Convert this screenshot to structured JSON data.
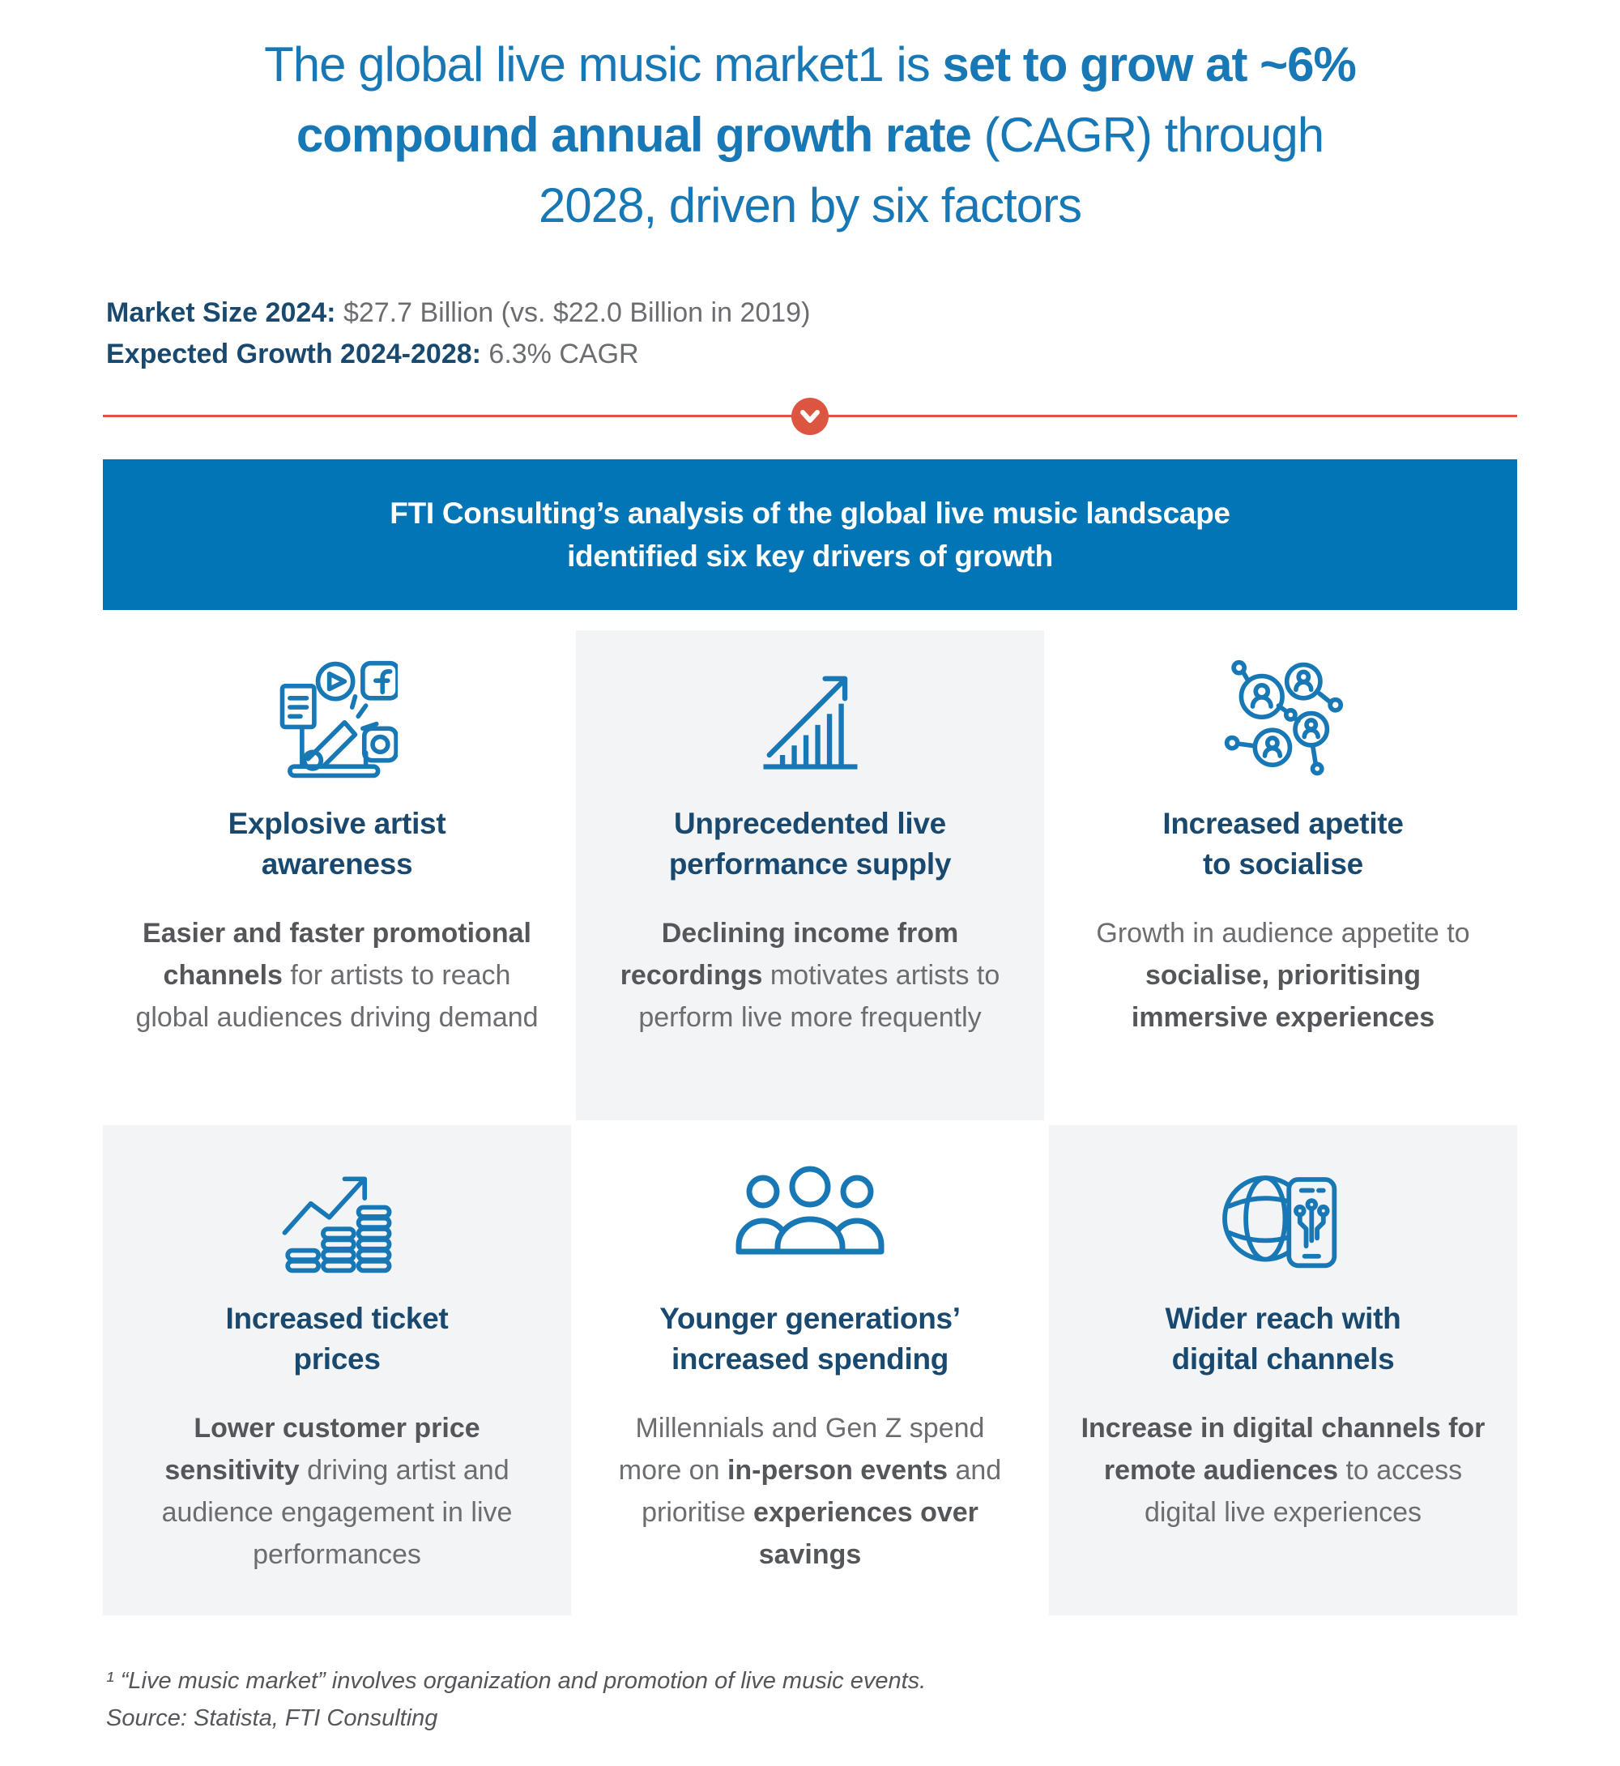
{
  "colors": {
    "accent_blue": "#1878b5",
    "banner_blue": "#0175b5",
    "navy": "#19496f",
    "orange": "#dc5541",
    "text_gray": "#6b6d70",
    "text_gray_bold": "#54565a",
    "card_bg": "#f3f4f6"
  },
  "title_lines": [
    [
      {
        "text": "The global live music market1 is ",
        "bold": false
      },
      {
        "text": "set to grow at ~6%",
        "bold": true
      }
    ],
    [
      {
        "text": "compound annual growth rate",
        "bold": true
      },
      {
        "text": " (CAGR) through",
        "bold": false
      }
    ],
    [
      {
        "text": "2028, driven by six factors",
        "bold": false
      }
    ]
  ],
  "market": {
    "size_label": "Market Size 2024:",
    "size_value": " $27.7 Billion (vs. $22.0 Billion in 2019)",
    "growth_label": "Expected Growth 2024-2028:",
    "growth_value": " 6.3% CAGR"
  },
  "banner_text": "FTI Consulting’s analysis of the global live music landscape\nidentified six key drivers of growth",
  "cards": [
    {
      "icon": "megaphone-social-media-icon",
      "title": "Explosive artist\nawareness",
      "body": [
        {
          "text": "Easier and faster promotional channels",
          "bold": true
        },
        {
          "text": " for artists to reach global audiences driving demand",
          "bold": false
        }
      ]
    },
    {
      "icon": "growth-chart-icon",
      "title": "Unprecedented live\nperformance supply",
      "body": [
        {
          "text": "Declining income from recordings",
          "bold": true
        },
        {
          "text": " motivates artists to perform live more frequently",
          "bold": false
        }
      ]
    },
    {
      "icon": "social-network-icon",
      "title": "Increased apetite\nto socialise",
      "body": [
        {
          "text": "Growth in audience appetite to ",
          "bold": false
        },
        {
          "text": "socialise, prioritising immersive experiences",
          "bold": true
        }
      ]
    },
    {
      "icon": "coins-growth-arrow-icon",
      "title": "Increased ticket\nprices",
      "body": [
        {
          "text": "Lower customer price sensitivity",
          "bold": true
        },
        {
          "text": " driving artist and audience engagement in live performances",
          "bold": false
        }
      ]
    },
    {
      "icon": "people-group-icon",
      "title": "Younger generations’\nincreased spending",
      "body": [
        {
          "text": "Millennials and Gen Z spend more on ",
          "bold": false
        },
        {
          "text": "in-person events",
          "bold": true
        },
        {
          "text": " and prioritise ",
          "bold": false
        },
        {
          "text": "experiences over savings",
          "bold": true
        }
      ]
    },
    {
      "icon": "globe-mobile-icon",
      "title": "Wider reach with\ndigital channels",
      "body": [
        {
          "text": "Increase in digital channels for remote audiences",
          "bold": true
        },
        {
          "text": " to access digital live experiences",
          "bold": false
        }
      ]
    }
  ],
  "footnote": {
    "line1": "¹ “Live music market” involves organization and promotion of live music events.",
    "line2": "Source: Statista, FTI Consulting"
  }
}
